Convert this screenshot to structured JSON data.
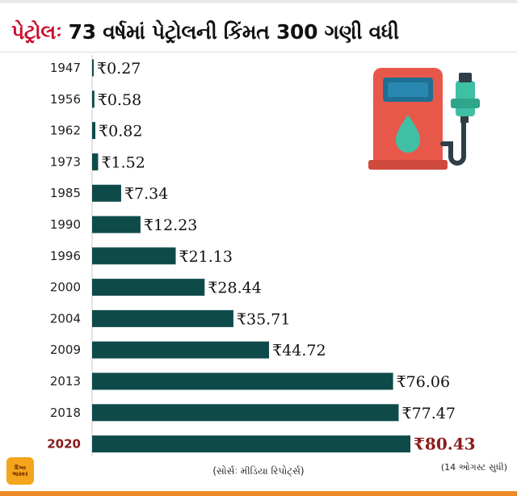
{
  "headline": {
    "lead": "પેટ્રોલઃ",
    "rest": " 73 વર્ષમાં પેટ્રોલની કિંમત 300 ગણી વધી"
  },
  "chart_data": {
    "type": "bar",
    "orientation": "horizontal",
    "categories": [
      "1947",
      "1956",
      "1962",
      "1973",
      "1985",
      "1990",
      "1996",
      "2000",
      "2004",
      "2009",
      "2013",
      "2018",
      "2020"
    ],
    "values": [
      0.27,
      0.58,
      0.82,
      1.52,
      7.34,
      12.23,
      21.13,
      28.44,
      35.71,
      44.72,
      76.06,
      77.47,
      80.43
    ],
    "data_labels": [
      "₹0.27",
      "₹0.58",
      "₹0.82",
      "₹1.52",
      "₹7.34",
      "₹12.23",
      "₹21.13",
      "₹28.44",
      "₹35.71",
      "₹44.72",
      "₹76.06",
      "₹77.47",
      "₹80.43"
    ],
    "highlight_category": "2020",
    "bar_color": "#0f4a4a",
    "highlight_color": "#8b1a1a",
    "grid": false,
    "legend": "none"
  },
  "source": "(સોર્સઃ મીડિયા રિપોર્ટ્સ)",
  "footnote": "(14 ઓગસ્ટ સુધી)",
  "logo": {
    "line1": "દિવ્ય",
    "line2": "ભાસ્કર"
  },
  "icons": {
    "pump": "fuel-pump-icon",
    "logo": "newspaper-logo"
  }
}
